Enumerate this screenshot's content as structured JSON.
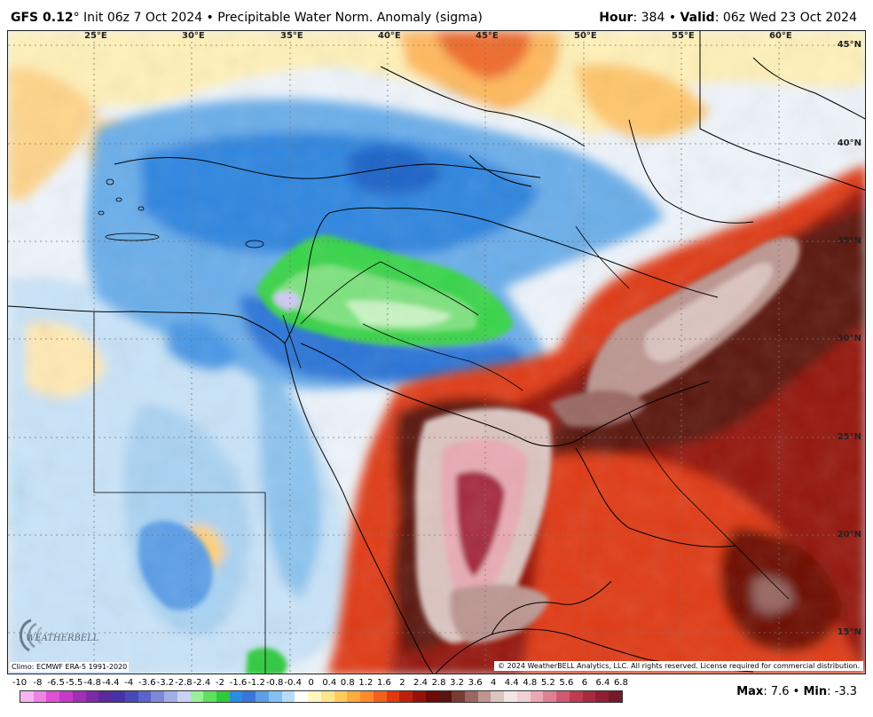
{
  "header": {
    "model": "GFS 0.12",
    "degree": "°",
    "init": "Init 06z 7 Oct 2024",
    "sep": " • ",
    "product": "Precipitable Water Norm. Anomaly (sigma)",
    "hour_label": "Hour",
    "hour_value": "384",
    "valid_label": "Valid",
    "valid_value": "06z Wed 23 Oct 2024"
  },
  "map": {
    "lon_labels": [
      "25°E",
      "30°E",
      "35°E",
      "40°E",
      "45°E",
      "50°E",
      "55°E",
      "60°E"
    ],
    "lat_labels": [
      "45°N",
      "40°N",
      "35°N",
      "30°N",
      "25°N",
      "20°N",
      "15°N"
    ],
    "logo_text": "WEATHERBELL",
    "climo": "Climo: ECMWF ERA-5 1991-2020",
    "copyright": "© 2024 WeatherBELL Analytics, LLC. All rights reserved. License required for commercial distribution."
  },
  "colorbar": {
    "labels": [
      "-10",
      "-8",
      "-6.5",
      "-5.5",
      "-4.8",
      "-4.4",
      "-4",
      "-3.6",
      "-3.2",
      "-2.8",
      "-2.4",
      "-2",
      "-1.6",
      "-1.2",
      "-0.8",
      "-0.4",
      "0",
      "0.4",
      "0.8",
      "1.2",
      "1.6",
      "2",
      "2.4",
      "2.8",
      "3.2",
      "3.6",
      "4",
      "4.4",
      "4.8",
      "5.2",
      "5.6",
      "6",
      "6.4",
      "6.8"
    ],
    "colors": [
      "#f7b4f0",
      "#ef82e4",
      "#e04fd6",
      "#c43ac9",
      "#a02fb4",
      "#7c2aa8",
      "#5a2a9c",
      "#4733a6",
      "#4849b8",
      "#5a64cc",
      "#7d88da",
      "#a3aee6",
      "#c9d2f2",
      "#9af09a",
      "#5ee05e",
      "#2fc93c",
      "#2a8ee0",
      "#3a76d8",
      "#5c9ee8",
      "#86c0f2",
      "#b6dcfa",
      "#ffffff",
      "#fff7c2",
      "#ffe68c",
      "#ffcc5c",
      "#ffac3c",
      "#ff8a2c",
      "#f4601e",
      "#e03a12",
      "#bf200c",
      "#951208",
      "#6e0a06",
      "#5a1410",
      "#7a3a34",
      "#9a6862",
      "#bd9690",
      "#dcc4c0",
      "#f4e4e4",
      "#f2cfd4",
      "#e9aab4",
      "#de8291",
      "#cf5a6f",
      "#bd3c52",
      "#a62a40",
      "#8e1f33",
      "#741a2a"
    ],
    "max_label": "Max",
    "max_value": "7.6",
    "min_label": "Min",
    "min_value": "-3.3"
  }
}
